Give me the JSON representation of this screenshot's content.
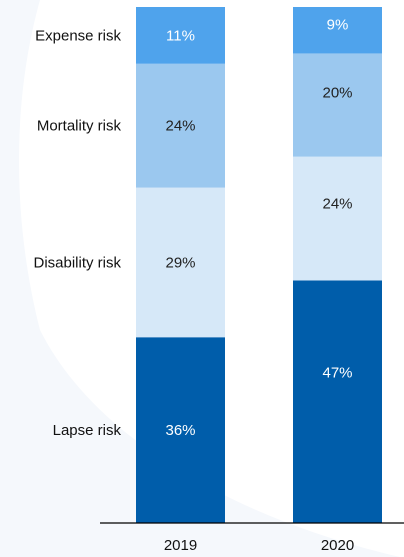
{
  "chart_data": {
    "type": "bar",
    "stacked": true,
    "normalized_percent": true,
    "categories": [
      "2019",
      "2020"
    ],
    "series": [
      {
        "name": "Lapse risk",
        "values": [
          36,
          47
        ],
        "labels": [
          "36%",
          "47%"
        ],
        "color": "#005DAA"
      },
      {
        "name": "Disability risk",
        "values": [
          29,
          24
        ],
        "labels": [
          "29%",
          "24%"
        ],
        "color": "#D6E8F8"
      },
      {
        "name": "Mortality risk",
        "values": [
          24,
          20
        ],
        "labels": [
          "24%",
          "20%"
        ],
        "color": "#9BC8EF"
      },
      {
        "name": "Expense risk",
        "values": [
          11,
          9
        ],
        "labels": [
          "11%",
          "9%"
        ],
        "color": "#4FA3EC"
      }
    ],
    "category_axis_labels": [
      "2019",
      "2020"
    ],
    "legend_placement": "left, aligned with 2019 segments",
    "ylim": [
      0,
      100
    ],
    "grid": false,
    "title": "",
    "xlabel": "",
    "ylabel": ""
  }
}
